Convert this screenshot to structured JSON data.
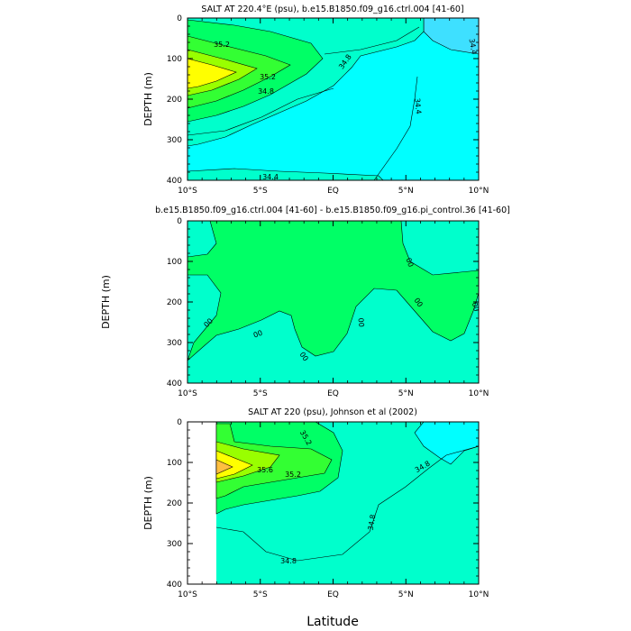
{
  "chart_data": [
    {
      "type": "contour",
      "title": "SALT AT 220.4°E (psu), b.e15.B1850.f09_g16.ctrl.004 [41-60]",
      "ylabel": "DEPTH (m)",
      "xlabel": "",
      "x_ticks": [
        "10°S",
        "5°S",
        "EQ",
        "5°N",
        "10°N"
      ],
      "y_ticks": [
        "0",
        "100",
        "200",
        "300",
        "400"
      ],
      "xlim": [
        -10,
        10
      ],
      "ylim": [
        400,
        0
      ],
      "contour_labels": [
        "35.2",
        "35.2",
        "34.8",
        "34.8",
        "34.4",
        "34.4",
        "34.4"
      ]
    },
    {
      "type": "contour",
      "title": "b.e15.B1850.f09_g16.ctrl.004 [41-60] - b.e15.B1850.f09_g16.pi_control.36 [41-60]",
      "ylabel": "DEPTH (m)",
      "xlabel": "",
      "x_ticks": [
        "10°S",
        "5°S",
        "EQ",
        "5°N",
        "10°N"
      ],
      "y_ticks": [
        "0",
        "100",
        "200",
        "300",
        "400"
      ],
      "xlim": [
        -10,
        10
      ],
      "ylim": [
        400,
        0
      ],
      "contour_labels": [
        "00",
        "00",
        "00",
        "00",
        "00",
        "00",
        "00"
      ]
    },
    {
      "type": "contour",
      "title": "SALT AT 220 (psu), Johnson et al (2002)",
      "ylabel": "DEPTH (m)",
      "xlabel": "Latitude",
      "x_ticks": [
        "10°S",
        "5°S",
        "EQ",
        "5°N",
        "10°N"
      ],
      "y_ticks": [
        "0",
        "100",
        "200",
        "300",
        "400"
      ],
      "xlim": [
        -10,
        10
      ],
      "ylim": [
        400,
        0
      ],
      "contour_labels": [
        "35.2",
        "35.6",
        "35.2",
        "34.8",
        "34.8",
        "34.8"
      ]
    }
  ],
  "colors": {
    "cyan_light": "#3ee0ff",
    "cyan": "#00ffff",
    "aqua": "#00ffcc",
    "green": "#00ff66",
    "green_bright": "#33ff33",
    "lime": "#99ff00",
    "yellow": "#ffff00",
    "orange": "#ffbf40",
    "no_data": "#ffffff"
  }
}
